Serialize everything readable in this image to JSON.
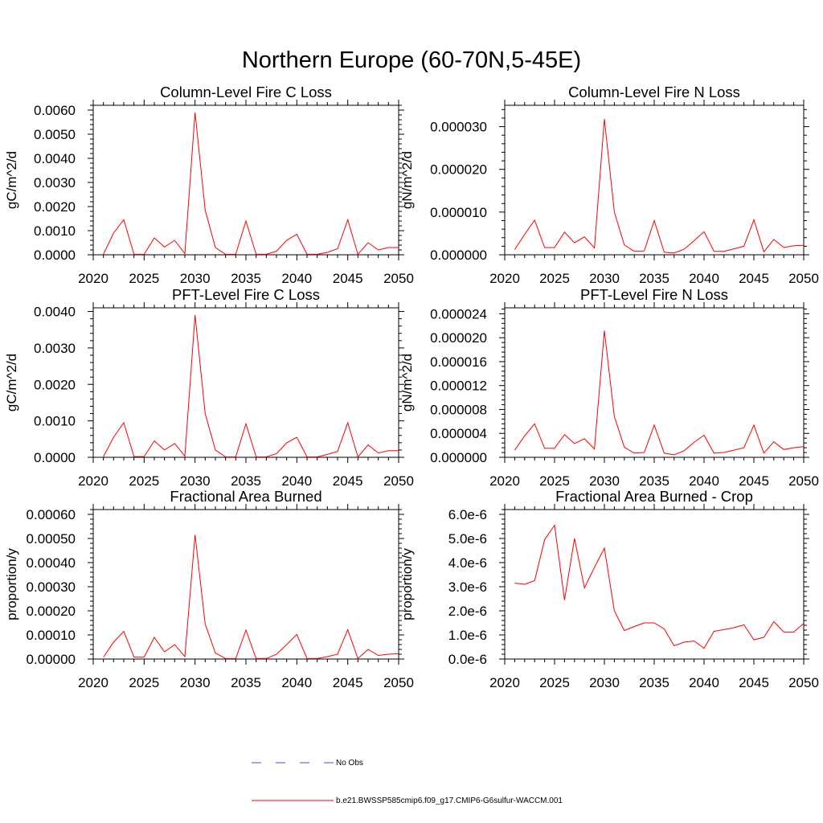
{
  "main_title": "Northern Europe (60-70N,5-45E)",
  "legend": {
    "entries": [
      {
        "label": "No Obs",
        "color": "#4a4acd",
        "dash": true
      },
      {
        "label": "b.e21.BWSSP585cmip6.f09_g17.CMIP6-G6sulfur-WACCM.001",
        "color": "#ff0000",
        "dash": false
      }
    ]
  },
  "chart_data": [
    {
      "type": "line",
      "title": "Column-Level Fire C Loss",
      "ylabel": "gC/m^2/d",
      "xlim": [
        2020,
        2050
      ],
      "ylim": [
        0,
        0.0062
      ],
      "xticks": [
        2020,
        2025,
        2030,
        2035,
        2040,
        2045,
        2050
      ],
      "xtick_labels": [
        "2020",
        "2025",
        "2030",
        "2035",
        "2040",
        "2045",
        "2050"
      ],
      "yticks": [
        0,
        0.001,
        0.002,
        0.003,
        0.004,
        0.005,
        0.006
      ],
      "ytick_labels": [
        "0.0000",
        "0.0010",
        "0.0020",
        "0.0030",
        "0.0040",
        "0.0050",
        "0.0060"
      ],
      "grid": false,
      "series": [
        {
          "color": "#ff0000",
          "x": [
            2021,
            2022,
            2023,
            2024,
            2025,
            2026,
            2027,
            2028,
            2029,
            2030,
            2031,
            2032,
            2033,
            2034,
            2035,
            2036,
            2037,
            2038,
            2039,
            2040,
            2041,
            2042,
            2043,
            2044,
            2045,
            2046,
            2047,
            2048,
            2049,
            2050
          ],
          "values": [
            2e-05,
            0.0009,
            0.00145,
            2e-05,
            2e-05,
            0.0007,
            0.00032,
            0.0006,
            5e-05,
            0.0059,
            0.00185,
            0.0003,
            2e-05,
            2e-05,
            0.0014,
            2e-05,
            2e-05,
            0.00015,
            0.0006,
            0.00085,
            2e-05,
            2e-05,
            0.0001,
            0.00025,
            0.00145,
            2e-05,
            0.0005,
            0.0002,
            0.0003,
            0.0003
          ]
        }
      ]
    },
    {
      "type": "line",
      "title": "Column-Level Fire N Loss",
      "ylabel": "gN/m^2/d",
      "xlim": [
        2020,
        2050
      ],
      "ylim": [
        0,
        3.5e-05
      ],
      "xticks": [
        2020,
        2025,
        2030,
        2035,
        2040,
        2045,
        2050
      ],
      "xtick_labels": [
        "2020",
        "2025",
        "2030",
        "2035",
        "2040",
        "2045",
        "2050"
      ],
      "yticks": [
        0,
        1e-05,
        2e-05,
        3e-05
      ],
      "ytick_labels": [
        "0.000000",
        "0.000010",
        "0.000020",
        "0.000030"
      ],
      "grid": false,
      "series": [
        {
          "color": "#ff0000",
          "x": [
            2021,
            2022,
            2023,
            2024,
            2025,
            2026,
            2027,
            2028,
            2029,
            2030,
            2031,
            2032,
            2033,
            2034,
            2035,
            2036,
            2037,
            2038,
            2039,
            2040,
            2041,
            2042,
            2043,
            2044,
            2045,
            2046,
            2047,
            2048,
            2049,
            2050
          ],
          "values": [
            1.2e-06,
            4.8e-06,
            8.1e-06,
            1.7e-06,
            1.7e-06,
            5.3e-06,
            2.8e-06,
            4.2e-06,
            1.6e-06,
            3.18e-05,
            1e-05,
            2.3e-06,
            8e-07,
            9e-07,
            8e-06,
            6e-07,
            4e-07,
            1.3e-06,
            3.3e-06,
            5.4e-06,
            8e-07,
            8e-07,
            1.4e-06,
            2e-06,
            8.2e-06,
            7e-07,
            3.6e-06,
            1.7e-06,
            2.1e-06,
            2.2e-06
          ]
        }
      ]
    },
    {
      "type": "line",
      "title": "PFT-Level Fire C Loss",
      "ylabel": "gC/m^2/d",
      "xlim": [
        2020,
        2050
      ],
      "ylim": [
        0,
        0.0041
      ],
      "xticks": [
        2020,
        2025,
        2030,
        2035,
        2040,
        2045,
        2050
      ],
      "xtick_labels": [
        "2020",
        "2025",
        "2030",
        "2035",
        "2040",
        "2045",
        "2050"
      ],
      "yticks": [
        0,
        0.001,
        0.002,
        0.003,
        0.004
      ],
      "ytick_labels": [
        "0.0000",
        "0.0010",
        "0.0020",
        "0.0030",
        "0.0040"
      ],
      "grid": false,
      "series": [
        {
          "color": "#ff0000",
          "x": [
            2021,
            2022,
            2023,
            2024,
            2025,
            2026,
            2027,
            2028,
            2029,
            2030,
            2031,
            2032,
            2033,
            2034,
            2035,
            2036,
            2037,
            2038,
            2039,
            2040,
            2041,
            2042,
            2043,
            2044,
            2045,
            2046,
            2047,
            2048,
            2049,
            2050
          ],
          "values": [
            2e-05,
            0.00055,
            0.00095,
            2e-05,
            2e-05,
            0.00045,
            0.0002,
            0.00038,
            3e-05,
            0.0039,
            0.0012,
            0.0002,
            1e-05,
            1e-05,
            0.00092,
            1e-05,
            1e-05,
            0.0001,
            0.0004,
            0.00055,
            1e-05,
            1e-05,
            8e-05,
            0.00016,
            0.00095,
            1e-05,
            0.00034,
            0.00012,
            0.00018,
            0.00018
          ]
        }
      ]
    },
    {
      "type": "line",
      "title": "PFT-Level Fire N Loss",
      "ylabel": "gN/m^2/d",
      "xlim": [
        2020,
        2050
      ],
      "ylim": [
        0,
        2.5e-05
      ],
      "xticks": [
        2020,
        2025,
        2030,
        2035,
        2040,
        2045,
        2050
      ],
      "xtick_labels": [
        "2020",
        "2025",
        "2030",
        "2035",
        "2040",
        "2045",
        "2050"
      ],
      "yticks": [
        0,
        4e-06,
        8e-06,
        1.2e-05,
        1.6e-05,
        2e-05,
        2.4e-05
      ],
      "ytick_labels": [
        "0.000000",
        "0.000004",
        "0.000008",
        "0.000012",
        "0.000016",
        "0.000020",
        "0.000024"
      ],
      "grid": false,
      "series": [
        {
          "color": "#ff0000",
          "x": [
            2021,
            2022,
            2023,
            2024,
            2025,
            2026,
            2027,
            2028,
            2029,
            2030,
            2031,
            2032,
            2033,
            2034,
            2035,
            2036,
            2037,
            2038,
            2039,
            2040,
            2041,
            2042,
            2043,
            2044,
            2045,
            2046,
            2047,
            2048,
            2049,
            2050
          ],
          "values": [
            1.2e-06,
            3.6e-06,
            5.6e-06,
            1.5e-06,
            1.5e-06,
            3.8e-06,
            2.3e-06,
            3.1e-06,
            1.4e-06,
            2.12e-05,
            6.8e-06,
            1.7e-06,
            7e-07,
            8e-07,
            5.4e-06,
            7e-07,
            4e-07,
            1.1e-06,
            2.5e-06,
            3.7e-06,
            7e-07,
            8e-07,
            1.2e-06,
            1.6e-06,
            5.4e-06,
            7e-07,
            2.6e-06,
            1.3e-06,
            1.6e-06,
            1.8e-06
          ]
        }
      ]
    },
    {
      "type": "line",
      "title": "Fractional Area Burned",
      "ylabel": "proportion/y",
      "xlim": [
        2020,
        2050
      ],
      "ylim": [
        0,
        0.00062
      ],
      "xticks": [
        2020,
        2025,
        2030,
        2035,
        2040,
        2045,
        2050
      ],
      "xtick_labels": [
        "2020",
        "2025",
        "2030",
        "2035",
        "2040",
        "2045",
        "2050"
      ],
      "yticks": [
        0,
        0.0001,
        0.0002,
        0.0003,
        0.0004,
        0.0005,
        0.0006
      ],
      "ytick_labels": [
        "0.00000",
        "0.00010",
        "0.00020",
        "0.00030",
        "0.00040",
        "0.00050",
        "0.00060"
      ],
      "grid": false,
      "series": [
        {
          "color": "#ff0000",
          "x": [
            2021,
            2022,
            2023,
            2024,
            2025,
            2026,
            2027,
            2028,
            2029,
            2030,
            2031,
            2032,
            2033,
            2034,
            2035,
            2036,
            2037,
            2038,
            2039,
            2040,
            2041,
            2042,
            2043,
            2044,
            2045,
            2046,
            2047,
            2048,
            2049,
            2050
          ],
          "values": [
            8e-06,
            7e-05,
            0.000115,
            8e-06,
            8e-06,
            9e-05,
            3e-05,
            6e-05,
            1e-05,
            0.000515,
            0.000145,
            2.5e-05,
            2e-06,
            2e-06,
            0.00012,
            2e-06,
            2e-06,
            2e-05,
            6e-05,
            0.000102,
            2e-06,
            2e-06,
            1e-05,
            2e-05,
            0.000122,
            2e-06,
            4e-05,
            1.5e-05,
            2e-05,
            2.2e-05
          ]
        }
      ]
    },
    {
      "type": "line",
      "title": "Fractional Area Burned - Crop",
      "ylabel": "proportion/y",
      "xlim": [
        2020,
        2050
      ],
      "ylim": [
        0,
        6.2e-06
      ],
      "xticks": [
        2020,
        2025,
        2030,
        2035,
        2040,
        2045,
        2050
      ],
      "xtick_labels": [
        "2020",
        "2025",
        "2030",
        "2035",
        "2040",
        "2045",
        "2050"
      ],
      "yticks": [
        0,
        1e-06,
        2e-06,
        3e-06,
        4e-06,
        5e-06,
        6e-06
      ],
      "ytick_labels": [
        "0.0e-6",
        "1.0e-6",
        "2.0e-6",
        "3.0e-6",
        "4.0e-6",
        "5.0e-6",
        "6.0e-6"
      ],
      "grid": false,
      "series": [
        {
          "color": "#ff0000",
          "x": [
            2021,
            2022,
            2023,
            2024,
            2025,
            2026,
            2027,
            2028,
            2029,
            2030,
            2031,
            2032,
            2033,
            2034,
            2035,
            2036,
            2037,
            2038,
            2039,
            2040,
            2041,
            2042,
            2043,
            2044,
            2045,
            2046,
            2047,
            2048,
            2049,
            2050
          ],
          "values": [
            3.15e-06,
            3.1e-06,
            3.25e-06,
            4.95e-06,
            5.55e-06,
            2.45e-06,
            5e-06,
            2.95e-06,
            3.8e-06,
            4.6e-06,
            2e-06,
            1.18e-06,
            1.35e-06,
            1.5e-06,
            1.5e-06,
            1.25e-06,
            5.5e-07,
            7e-07,
            7.5e-07,
            4.5e-07,
            1.15e-06,
            1.22e-06,
            1.3e-06,
            1.42e-06,
            8e-07,
            9e-07,
            1.55e-06,
            1.12e-06,
            1.12e-06,
            1.48e-06
          ]
        }
      ]
    }
  ]
}
